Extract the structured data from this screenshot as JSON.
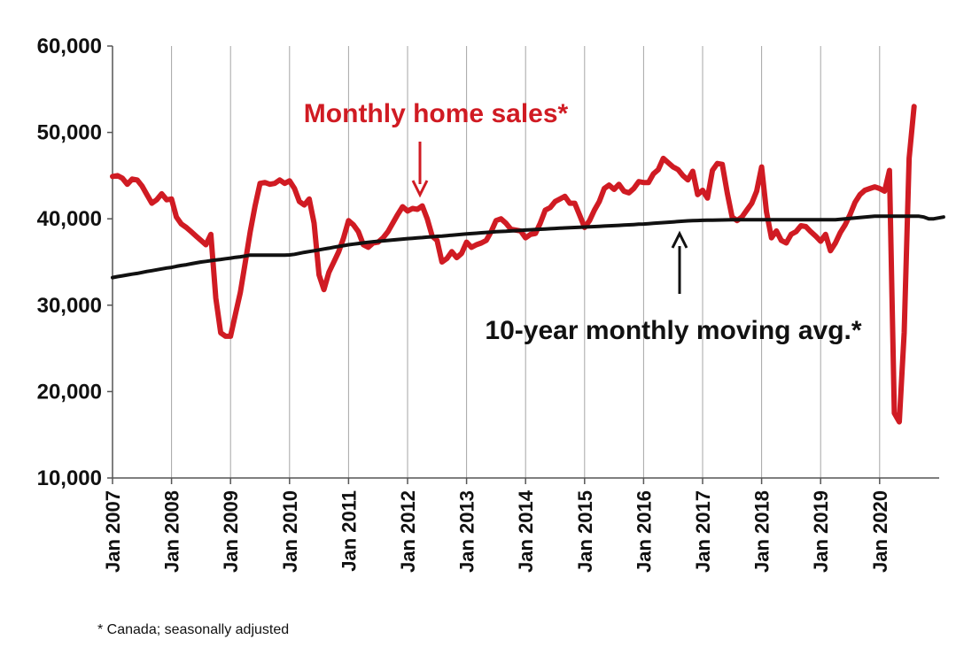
{
  "chart_data": {
    "type": "line",
    "x_unit": "month",
    "x_start": "2007-01",
    "xticks": [
      "Jan 2007",
      "Jan 2008",
      "Jan 2009",
      "Jan 2010",
      "Jan 2011",
      "Jan 2012",
      "Jan 2013",
      "Jan 2014",
      "Jan 2015",
      "Jan 2016",
      "Jan 2017",
      "Jan 2018",
      "Jan 2019",
      "Jan 2020"
    ],
    "ylim": [
      10000,
      60000
    ],
    "yticks": [
      10000,
      20000,
      30000,
      40000,
      50000,
      60000
    ],
    "ytick_labels": [
      "10,000",
      "20,000",
      "30,000",
      "40,000",
      "50,000",
      "60,000"
    ],
    "grid": "vertical",
    "legend": "none",
    "annotations": [
      {
        "text": "Monthly home sales*",
        "series": "sales",
        "arrow": "down",
        "color": "#d01b23"
      },
      {
        "text": "10-year monthly moving avg.*",
        "series": "avg",
        "arrow": "up",
        "color": "#111111"
      }
    ],
    "footnote": "* Canada; seasonally adjusted",
    "series": [
      {
        "key": "sales",
        "color": "#d01b23",
        "values": [
          44900,
          45000,
          44700,
          44000,
          44600,
          44500,
          43800,
          42800,
          41800,
          42200,
          42900,
          42200,
          42300,
          40200,
          39400,
          39000,
          38500,
          38000,
          37500,
          37000,
          38200,
          30800,
          26800,
          26400,
          26400,
          29000,
          31500,
          35000,
          38500,
          41500,
          44100,
          44200,
          44000,
          44100,
          44500,
          44100,
          44400,
          43500,
          42000,
          41600,
          42300,
          39500,
          33500,
          31800,
          33800,
          35000,
          36200,
          37800,
          39800,
          39300,
          38500,
          37000,
          36700,
          37200,
          37300,
          37800,
          38500,
          39500,
          40500,
          41400,
          40900,
          41200,
          41100,
          41500,
          40000,
          38000,
          37500,
          35000,
          35400,
          36200,
          35500,
          36000,
          37300,
          36700,
          37000,
          37200,
          37500,
          38500,
          39800,
          40000,
          39500,
          38800,
          38700,
          38600,
          37800,
          38200,
          38300,
          39500,
          41000,
          41300,
          42000,
          42300,
          42600,
          41800,
          41800,
          40400,
          39000,
          39800,
          41000,
          42000,
          43500,
          43900,
          43400,
          44000,
          43200,
          43000,
          43500,
          44300,
          44200,
          44200,
          45200,
          45700,
          47000,
          46500,
          46000,
          45700,
          45000,
          44500,
          45500,
          42800,
          43300,
          42400,
          45600,
          46400,
          46300,
          43000,
          40200,
          39800,
          40200,
          41000,
          41800,
          43200,
          46000,
          40800,
          37800,
          38600,
          37500,
          37200,
          38200,
          38500,
          39200,
          39100,
          38500,
          38000,
          37400,
          38200,
          36300,
          37200,
          38400,
          39300,
          40500,
          41900,
          42800,
          43300,
          43500,
          43700,
          43500,
          43200,
          45600,
          17500,
          16500,
          26800,
          47000,
          53000
        ]
      },
      {
        "key": "avg",
        "color": "#111111",
        "values": [
          33200,
          33310,
          33400,
          33500,
          33600,
          33680,
          33790,
          33900,
          34000,
          34100,
          34200,
          34300,
          34380,
          34500,
          34600,
          34680,
          34790,
          34900,
          35000,
          35070,
          35150,
          35240,
          35300,
          35380,
          35450,
          35540,
          35600,
          35700,
          35800,
          35800,
          35800,
          35800,
          35800,
          35800,
          35800,
          35800,
          35820,
          35890,
          36000,
          36120,
          36210,
          36300,
          36400,
          36510,
          36600,
          36710,
          36800,
          36900,
          37000,
          37070,
          37140,
          37210,
          37280,
          37350,
          37400,
          37450,
          37500,
          37550,
          37600,
          37650,
          37700,
          37750,
          37800,
          37830,
          37880,
          37920,
          37970,
          38000,
          38050,
          38100,
          38150,
          38200,
          38250,
          38290,
          38330,
          38380,
          38420,
          38460,
          38500,
          38530,
          38560,
          38600,
          38630,
          38670,
          38700,
          38730,
          38760,
          38790,
          38820,
          38850,
          38880,
          38910,
          38940,
          38970,
          39000,
          39020,
          39050,
          39080,
          39100,
          39130,
          39160,
          39190,
          39210,
          39240,
          39270,
          39300,
          39330,
          39370,
          39400,
          39440,
          39480,
          39520,
          39560,
          39600,
          39640,
          39680,
          39720,
          39760,
          39800,
          39810,
          39830,
          39840,
          39850,
          39860,
          39870,
          39880,
          39890,
          39900,
          39900,
          39900,
          39900,
          39900,
          39900,
          39900,
          39900,
          39900,
          39900,
          39900,
          39900,
          39900,
          39900,
          39900,
          39900,
          39900,
          39900,
          39900,
          39900,
          39900,
          39950,
          40000,
          40050,
          40100,
          40150,
          40200,
          40250,
          40300,
          40300,
          40300,
          40300,
          40300,
          40300,
          40300,
          40300,
          40300,
          40300,
          40200,
          40000,
          40000,
          40100,
          40200
        ]
      }
    ]
  }
}
